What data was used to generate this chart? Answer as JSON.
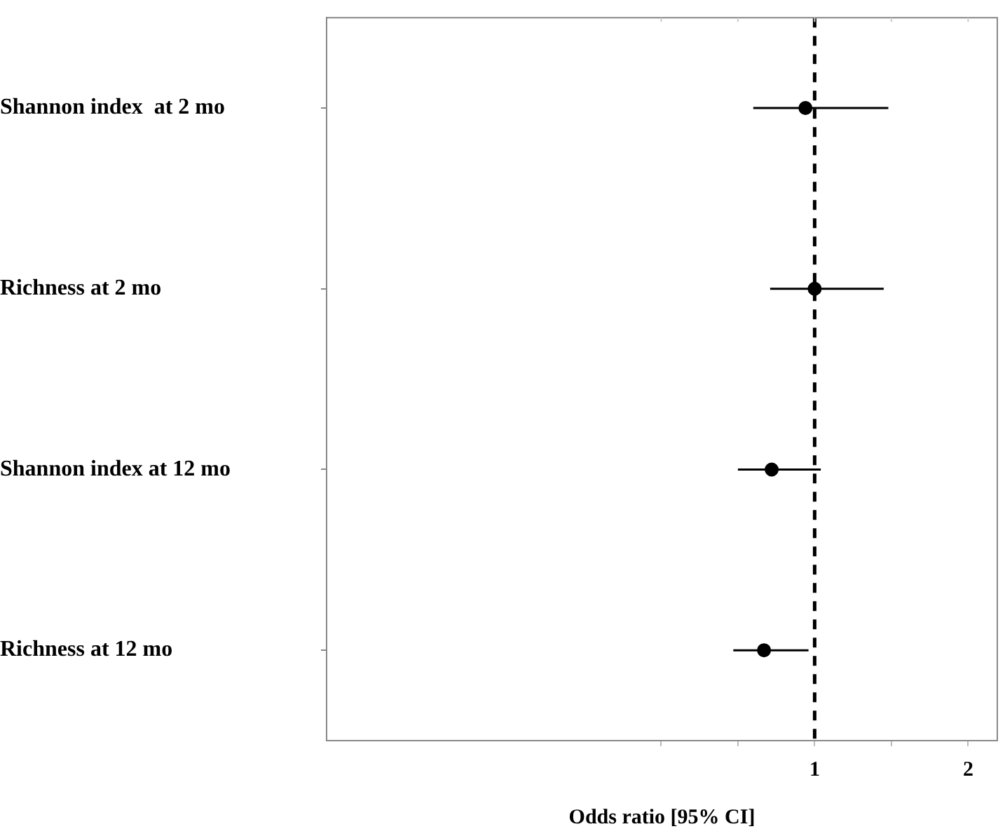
{
  "chart_data": {
    "type": "scatter",
    "orientation": "horizontal",
    "xlabel": "Odds ratio [95% CI]",
    "categories": [
      "Shannon index  at 2 mo",
      "Richness at 2 mo",
      "Shannon index at 12 mo",
      "Richness at 12 mo"
    ],
    "values": [
      0.94,
      1.0,
      0.72,
      0.67
    ],
    "errors": [
      [
        0.6,
        1.48
      ],
      [
        0.71,
        1.45
      ],
      [
        0.5,
        1.04
      ],
      [
        0.47,
        0.96
      ]
    ],
    "color": "#000000",
    "marker": "circle",
    "xlim": [
      -2.18,
      2.19
    ],
    "xticks": [
      {
        "value": 0,
        "label": null
      },
      {
        "value": 0.5,
        "label": null
      },
      1,
      {
        "value": 1.5,
        "label": null
      },
      2
    ],
    "ref_lines": [
      {
        "axis": "x",
        "value": 1,
        "color": "#000000",
        "line_style": "dashed"
      }
    ],
    "grid": false,
    "legend": false
  }
}
